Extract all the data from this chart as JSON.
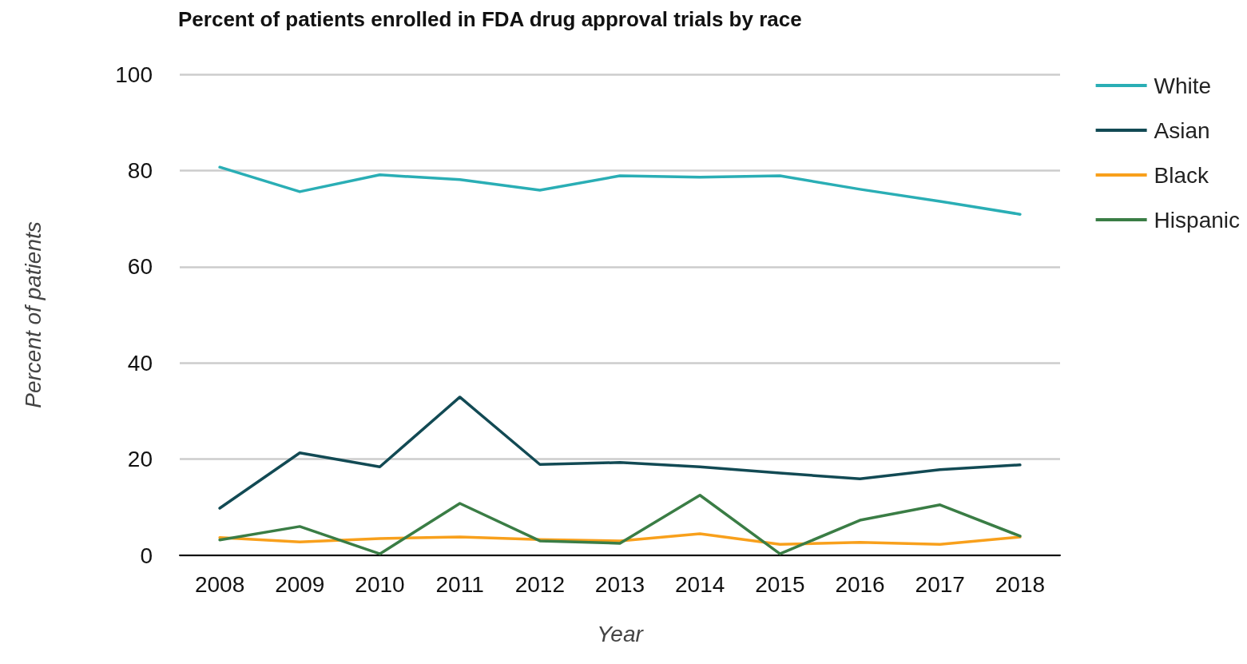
{
  "chart_data": {
    "type": "line",
    "title": "Percent of patients enrolled in FDA drug approval trials by race",
    "xlabel": "Year",
    "ylabel": "Percent of patients",
    "categories": [
      "2008",
      "2009",
      "2010",
      "2011",
      "2012",
      "2013",
      "2014",
      "2015",
      "2016",
      "2017",
      "2018"
    ],
    "series": [
      {
        "name": "White",
        "color": "#2aaeb5",
        "values": [
          80.7,
          75.6,
          79.1,
          78.1,
          75.9,
          78.9,
          78.6,
          78.9,
          76.1,
          73.6,
          70.9
        ]
      },
      {
        "name": "Asian",
        "color": "#124a54",
        "values": [
          9.8,
          21.3,
          18.4,
          32.9,
          18.9,
          19.3,
          18.4,
          17.1,
          15.9,
          17.8,
          18.8
        ]
      },
      {
        "name": "Black",
        "color": "#f8a01c",
        "values": [
          3.7,
          2.8,
          3.5,
          3.8,
          3.3,
          3.0,
          4.5,
          2.3,
          2.7,
          2.3,
          3.8
        ]
      },
      {
        "name": "Hispanic",
        "color": "#3a7d45",
        "values": [
          3.2,
          6.0,
          0.3,
          10.8,
          3.0,
          2.5,
          12.5,
          0.3,
          7.3,
          10.5,
          4.0
        ]
      }
    ],
    "ylim": [
      0,
      100
    ],
    "yticks": [
      0,
      20,
      40,
      60,
      80,
      100
    ],
    "grid": "y",
    "legend": "top right",
    "marker": "none",
    "line_style": "solid"
  }
}
